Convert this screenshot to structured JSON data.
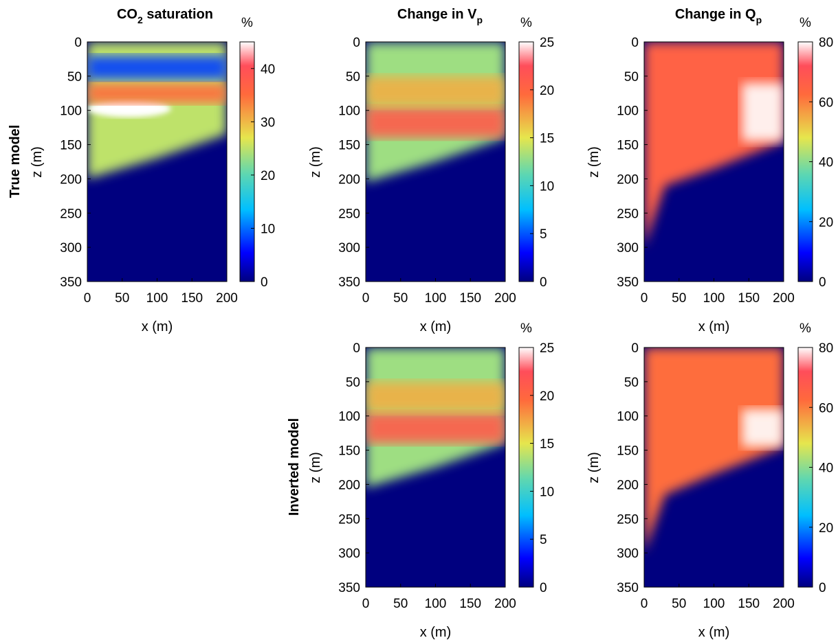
{
  "figure": {
    "row_labels": [
      "True model",
      "Inverted model"
    ]
  },
  "chart_data": [
    {
      "type": "heatmap",
      "id": "true-co2",
      "row": "True model",
      "title": "CO2 saturation",
      "title_main": "CO",
      "title_sub": "2",
      "title_rest": " saturation",
      "xlabel": "x (m)",
      "ylabel": "z (m)",
      "xlim": [
        0,
        200
      ],
      "ylim": [
        0,
        350
      ],
      "y_reversed": true,
      "xticks": [
        0,
        50,
        100,
        150,
        200
      ],
      "yticks": [
        0,
        50,
        100,
        150,
        200,
        250,
        300,
        350
      ],
      "colorbar": {
        "unit": "%",
        "range": [
          0,
          45
        ],
        "ticks": [
          0,
          10,
          20,
          30,
          40
        ],
        "colormap": "jet-white"
      },
      "regions": [
        {
          "description": "plume body",
          "top_m": 0,
          "boundary_bottom_m": [
            [
              0,
              200
            ],
            [
              100,
              170
            ],
            [
              200,
              135
            ]
          ],
          "value_pct": 25
        },
        {
          "description": "high saturation lens",
          "x_m": [
            0,
            120
          ],
          "z_m": [
            85,
            110
          ],
          "value_pct": 45
        },
        {
          "description": "upper band",
          "x_m": [
            0,
            200
          ],
          "z_m": [
            60,
            90
          ],
          "value_pct": 35
        },
        {
          "description": "low zone near top",
          "x_m": [
            0,
            200
          ],
          "z_m": [
            20,
            55
          ],
          "value_pct": 8
        },
        {
          "description": "background",
          "value_pct": 0
        }
      ]
    },
    {
      "type": "heatmap",
      "id": "true-vp",
      "row": "True model",
      "title": "Change in Vp",
      "title_main": "Change in V",
      "title_sub": "p",
      "xlabel": "x (m)",
      "ylabel": "z (m)",
      "xlim": [
        0,
        200
      ],
      "ylim": [
        0,
        350
      ],
      "y_reversed": true,
      "xticks": [
        0,
        50,
        100,
        150,
        200
      ],
      "yticks": [
        0,
        50,
        100,
        150,
        200,
        250,
        300,
        350
      ],
      "colorbar": {
        "unit": "%",
        "range": [
          0,
          25
        ],
        "ticks": [
          0,
          5,
          10,
          15,
          20,
          25
        ],
        "colormap": "jet-white"
      },
      "regions": [
        {
          "description": "plume body",
          "boundary_bottom_m": [
            [
              0,
              205
            ],
            [
              100,
              175
            ],
            [
              200,
              140
            ]
          ],
          "value_pct": 13
        },
        {
          "description": "high Vp change band",
          "x_m": [
            0,
            200
          ],
          "z_m": [
            95,
            140
          ],
          "value_pct": 21
        },
        {
          "description": "upper band",
          "x_m": [
            0,
            200
          ],
          "z_m": [
            50,
            95
          ],
          "value_pct": 17
        },
        {
          "description": "background",
          "value_pct": 0
        }
      ]
    },
    {
      "type": "heatmap",
      "id": "true-qp",
      "row": "True model",
      "title": "Change in Qp",
      "title_main": "Change in Q",
      "title_sub": "p",
      "xlabel": "x (m)",
      "ylabel": "z (m)",
      "xlim": [
        0,
        200
      ],
      "ylim": [
        0,
        350
      ],
      "y_reversed": true,
      "xticks": [
        0,
        50,
        100,
        150,
        200
      ],
      "yticks": [
        0,
        50,
        100,
        150,
        200,
        250,
        300,
        350
      ],
      "colorbar": {
        "unit": "%",
        "range": [
          0,
          80
        ],
        "ticks": [
          0,
          20,
          40,
          60,
          80
        ],
        "colormap": "jet-white"
      },
      "regions": [
        {
          "description": "plume body",
          "boundary_bottom_m": [
            [
              0,
              300
            ],
            [
              30,
              210
            ],
            [
              100,
              185
            ],
            [
              200,
              145
            ]
          ],
          "value_pct": 65
        },
        {
          "description": "white zone",
          "x_m": [
            140,
            200
          ],
          "z_m": [
            60,
            145
          ],
          "value_pct": 80
        },
        {
          "description": "background",
          "value_pct": 0
        }
      ]
    },
    {
      "type": "heatmap",
      "id": "inv-vp",
      "row": "Inverted model",
      "title": "",
      "xlabel": "x (m)",
      "ylabel": "z (m)",
      "xlim": [
        0,
        200
      ],
      "ylim": [
        0,
        350
      ],
      "y_reversed": true,
      "xticks": [
        0,
        50,
        100,
        150,
        200
      ],
      "yticks": [
        0,
        50,
        100,
        150,
        200,
        250,
        300,
        350
      ],
      "colorbar": {
        "unit": "%",
        "range": [
          0,
          25
        ],
        "ticks": [
          0,
          5,
          10,
          15,
          20,
          25
        ],
        "colormap": "jet-white"
      },
      "regions": [
        {
          "description": "plume body",
          "boundary_bottom_m": [
            [
              0,
              205
            ],
            [
              100,
              175
            ],
            [
              200,
              140
            ]
          ],
          "value_pct": 13
        },
        {
          "description": "high Vp change band",
          "x_m": [
            0,
            200
          ],
          "z_m": [
            95,
            140
          ],
          "value_pct": 21
        },
        {
          "description": "upper band",
          "x_m": [
            0,
            200
          ],
          "z_m": [
            50,
            95
          ],
          "value_pct": 17
        },
        {
          "description": "background",
          "value_pct": 0
        }
      ]
    },
    {
      "type": "heatmap",
      "id": "inv-qp",
      "row": "Inverted model",
      "title": "",
      "xlabel": "x (m)",
      "ylabel": "z (m)",
      "xlim": [
        0,
        200
      ],
      "ylim": [
        0,
        350
      ],
      "y_reversed": true,
      "xticks": [
        0,
        50,
        100,
        150,
        200
      ],
      "yticks": [
        0,
        50,
        100,
        150,
        200,
        250,
        300,
        350
      ],
      "colorbar": {
        "unit": "%",
        "range": [
          0,
          80
        ],
        "ticks": [
          0,
          20,
          40,
          60,
          80
        ],
        "colormap": "jet-white"
      },
      "regions": [
        {
          "description": "plume body",
          "boundary_bottom_m": [
            [
              0,
              300
            ],
            [
              30,
              215
            ],
            [
              100,
              185
            ],
            [
              200,
              145
            ]
          ],
          "value_pct": 62
        },
        {
          "description": "white zone",
          "x_m": [
            140,
            200
          ],
          "z_m": [
            90,
            145
          ],
          "value_pct": 80
        },
        {
          "description": "background",
          "value_pct": 0
        }
      ]
    }
  ]
}
